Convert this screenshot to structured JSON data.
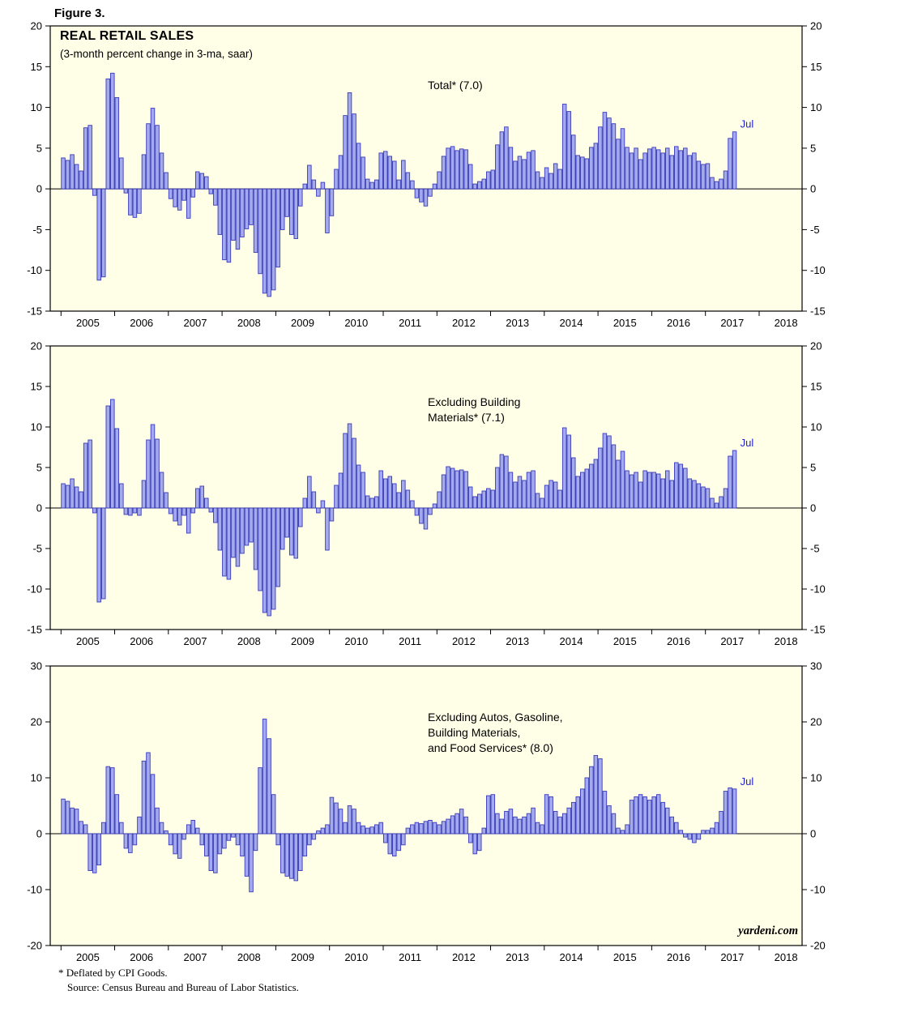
{
  "figure_label": "Figure 3.",
  "header": {
    "title": "REAL RETAIL SALES",
    "subtitle": "(3-month percent change in 3-ma, saar)"
  },
  "footnotes": {
    "line1": "* Deflated by CPI Goods.",
    "line2": "Source: Census Bureau and Bureau of Labor Statistics."
  },
  "watermark": "yardeni.com",
  "colors": {
    "plot_bg": "#FFFFE8",
    "bar_fill": "#A3AAEE",
    "bar_stroke": "#3B3BB8",
    "axis": "#000000",
    "annotation_blue": "#2222CC"
  },
  "x_year_labels": [
    "2005",
    "2006",
    "2007",
    "2008",
    "2009",
    "2010",
    "2011",
    "2012",
    "2013",
    "2014",
    "2015",
    "2016",
    "2017",
    "2018"
  ],
  "chart_data": [
    {
      "type": "bar",
      "title": "Total* (7.0)",
      "series_label_lines": [
        "Total* (7.0)"
      ],
      "last_label": "Jul",
      "xlabel": "",
      "ylabel": "",
      "start": "2005-01",
      "end": "2017-07",
      "ylim": [
        -15,
        20
      ],
      "yticks": [
        20,
        15,
        10,
        5,
        0,
        -5,
        -10,
        -15
      ],
      "grid": false,
      "values": [
        3.8,
        3.5,
        4.2,
        3.0,
        2.2,
        7.5,
        7.8,
        -0.8,
        -11.2,
        -10.8,
        13.5,
        14.2,
        11.2,
        3.8,
        -0.5,
        -3.2,
        -3.5,
        -3.0,
        4.2,
        8.0,
        9.9,
        7.8,
        4.4,
        2.0,
        -1.2,
        -2.2,
        -2.6,
        -1.4,
        -3.6,
        -1.0,
        2.1,
        1.9,
        1.5,
        -0.6,
        -2.0,
        -5.6,
        -8.7,
        -9.0,
        -6.3,
        -7.4,
        -5.9,
        -4.9,
        -4.4,
        -7.8,
        -10.4,
        -12.8,
        -13.2,
        -12.4,
        -9.6,
        -5.0,
        -3.4,
        -5.6,
        -6.1,
        -2.1,
        0.6,
        2.9,
        1.1,
        -0.9,
        0.8,
        -5.4,
        -3.3,
        2.4,
        4.1,
        9.0,
        11.8,
        9.2,
        5.6,
        3.9,
        1.2,
        0.8,
        1.1,
        4.4,
        4.6,
        4.0,
        3.4,
        1.1,
        3.5,
        2.0,
        1.0,
        -1.1,
        -1.6,
        -2.1,
        -0.9,
        0.6,
        2.1,
        4.0,
        5.0,
        5.2,
        4.7,
        4.9,
        4.8,
        3.0,
        0.6,
        0.9,
        1.2,
        2.1,
        2.3,
        5.4,
        7.0,
        7.6,
        5.1,
        3.4,
        4.0,
        3.6,
        4.5,
        4.7,
        2.1,
        1.4,
        2.6,
        1.9,
        3.1,
        2.4,
        10.4,
        9.5,
        6.6,
        4.1,
        3.9,
        3.7,
        5.1,
        5.6,
        7.6,
        9.4,
        8.7,
        8.0,
        6.1,
        7.4,
        5.1,
        4.4,
        5.0,
        3.6,
        4.4,
        4.9,
        5.1,
        4.8,
        4.4,
        5.0,
        4.1,
        5.2,
        4.7,
        5.0,
        4.1,
        4.4,
        3.4,
        3.0,
        3.1,
        1.4,
        0.9,
        1.2,
        2.2,
        6.2,
        7.0
      ]
    },
    {
      "type": "bar",
      "title": "Excluding Building Materials* (7.1)",
      "series_label_lines": [
        "Excluding Building",
        "Materials* (7.1)"
      ],
      "last_label": "Jul",
      "xlabel": "",
      "ylabel": "",
      "start": "2005-01",
      "end": "2017-07",
      "ylim": [
        -15,
        20
      ],
      "yticks": [
        20,
        15,
        10,
        5,
        0,
        -5,
        -10,
        -15
      ],
      "grid": false,
      "values": [
        3.0,
        2.8,
        3.6,
        2.6,
        2.0,
        8.0,
        8.4,
        -0.6,
        -11.6,
        -11.2,
        12.6,
        13.4,
        9.8,
        3.0,
        -0.8,
        -0.9,
        -0.6,
        -0.9,
        3.4,
        8.4,
        10.3,
        8.5,
        4.4,
        1.9,
        -0.7,
        -1.6,
        -2.1,
        -0.9,
        -3.1,
        -0.6,
        2.4,
        2.7,
        1.2,
        -0.5,
        -1.8,
        -5.2,
        -8.4,
        -8.8,
        -6.1,
        -7.2,
        -5.6,
        -4.6,
        -4.2,
        -7.6,
        -10.2,
        -12.9,
        -13.3,
        -12.5,
        -9.7,
        -5.1,
        -3.6,
        -5.8,
        -6.2,
        -2.3,
        1.2,
        3.9,
        2.0,
        -0.6,
        0.9,
        -5.2,
        -1.6,
        2.8,
        4.3,
        9.2,
        10.4,
        8.6,
        5.3,
        4.4,
        1.5,
        1.2,
        1.4,
        4.6,
        3.6,
        3.9,
        3.0,
        1.9,
        3.4,
        2.2,
        0.9,
        -0.9,
        -1.9,
        -2.6,
        -0.8,
        0.5,
        2.0,
        4.1,
        5.1,
        4.9,
        4.6,
        4.7,
        4.5,
        2.6,
        1.4,
        1.7,
        2.1,
        2.4,
        2.2,
        5.0,
        6.6,
        6.4,
        4.4,
        3.2,
        3.9,
        3.4,
        4.4,
        4.6,
        1.8,
        1.2,
        2.8,
        3.4,
        3.2,
        2.2,
        9.9,
        9.0,
        6.2,
        3.9,
        4.4,
        4.8,
        5.4,
        6.0,
        7.4,
        9.2,
        8.9,
        7.8,
        5.9,
        7.0,
        4.6,
        4.1,
        4.4,
        3.2,
        4.6,
        4.4,
        4.4,
        4.2,
        3.6,
        4.6,
        3.4,
        5.6,
        5.4,
        4.9,
        3.6,
        3.4,
        3.0,
        2.6,
        2.4,
        1.2,
        0.6,
        1.4,
        2.4,
        6.4,
        7.1
      ]
    },
    {
      "type": "bar",
      "title": "Excluding Autos, Gasoline, Building Materials, and Food Services* (8.0)",
      "series_label_lines": [
        "Excluding Autos, Gasoline,",
        "Building Materials,",
        "and Food Services* (8.0)"
      ],
      "last_label": "Jul",
      "xlabel": "",
      "ylabel": "",
      "start": "2005-01",
      "end": "2017-07",
      "ylim": [
        -20,
        30
      ],
      "yticks": [
        30,
        20,
        10,
        0,
        -10,
        -20
      ],
      "grid": false,
      "values": [
        6.2,
        5.8,
        4.6,
        4.4,
        2.2,
        1.6,
        -6.6,
        -7.0,
        -5.6,
        2.0,
        12.0,
        11.8,
        7.0,
        2.0,
        -2.6,
        -3.4,
        -2.0,
        3.0,
        13.0,
        14.5,
        10.6,
        4.6,
        2.0,
        0.5,
        -2.0,
        -3.6,
        -4.4,
        -1.0,
        1.6,
        2.4,
        1.0,
        -2.0,
        -4.0,
        -6.6,
        -7.0,
        -3.6,
        -2.6,
        -1.2,
        -0.6,
        -2.0,
        -4.0,
        -7.6,
        -10.4,
        -3.0,
        11.8,
        20.5,
        17.0,
        7.0,
        -2.0,
        -7.0,
        -7.6,
        -8.0,
        -8.4,
        -6.6,
        -4.0,
        -2.0,
        -1.0,
        0.5,
        1.0,
        1.6,
        6.5,
        5.5,
        4.4,
        2.0,
        5.0,
        4.4,
        2.0,
        1.4,
        1.0,
        1.2,
        1.6,
        2.0,
        -1.6,
        -3.6,
        -4.0,
        -3.0,
        -2.0,
        1.0,
        1.6,
        2.0,
        1.8,
        2.2,
        2.4,
        2.0,
        1.6,
        2.2,
        2.6,
        3.2,
        3.6,
        4.4,
        3.0,
        -1.6,
        -3.6,
        -3.0,
        1.0,
        6.8,
        7.0,
        3.6,
        2.6,
        4.0,
        4.4,
        3.0,
        2.6,
        3.0,
        3.6,
        4.6,
        2.0,
        1.6,
        7.0,
        6.6,
        4.0,
        3.0,
        3.6,
        4.6,
        5.6,
        6.6,
        8.0,
        10.0,
        12.0,
        14.0,
        13.4,
        7.6,
        5.0,
        3.6,
        1.0,
        0.6,
        1.6,
        6.0,
        6.6,
        7.0,
        6.6,
        6.0,
        6.6,
        7.0,
        5.6,
        4.6,
        3.0,
        2.0,
        0.6,
        -0.6,
        -1.0,
        -1.6,
        -1.0,
        0.6,
        0.6,
        1.0,
        2.0,
        4.0,
        7.6,
        8.2,
        8.0
      ]
    }
  ]
}
